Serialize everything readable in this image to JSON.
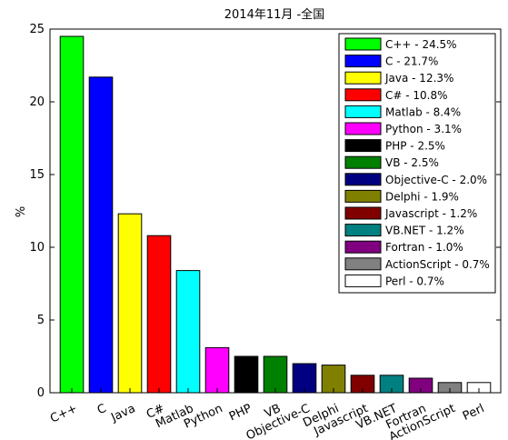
{
  "chart_data": {
    "type": "bar",
    "title": "2014年11月 -全国",
    "xlabel": "",
    "ylabel": "%",
    "ylim": [
      0,
      25
    ],
    "yticks": [
      0,
      5,
      10,
      15,
      20,
      25
    ],
    "grid": false,
    "legend_position": "top-right",
    "categories": [
      "C++",
      "C",
      "Java",
      "C#",
      "Matlab",
      "Python",
      "PHP",
      "VB",
      "Objective-C",
      "Delphi",
      "Javascript",
      "VB.NET",
      "Fortran",
      "ActionScript",
      "Perl"
    ],
    "values": [
      24.5,
      21.7,
      12.3,
      10.8,
      8.4,
      3.1,
      2.5,
      2.5,
      2.0,
      1.9,
      1.2,
      1.2,
      1.0,
      0.7,
      0.7
    ],
    "colors": [
      "#00ff00",
      "#0000ff",
      "#ffff00",
      "#ff0000",
      "#00ffff",
      "#ff00ff",
      "#000000",
      "#008000",
      "#000080",
      "#808000",
      "#800000",
      "#008080",
      "#800080",
      "#808080",
      "#ffffff"
    ],
    "legend": [
      "C++ - 24.5%",
      "C - 21.7%",
      "Java - 12.3%",
      "C# - 10.8%",
      "Matlab - 8.4%",
      "Python - 3.1%",
      "PHP - 2.5%",
      "VB - 2.5%",
      "Objective-C - 2.0%",
      "Delphi - 1.9%",
      "Javascript - 1.2%",
      "VB.NET - 1.2%",
      "Fortran - 1.0%",
      "ActionScript - 0.7%",
      "Perl - 0.7%"
    ]
  }
}
